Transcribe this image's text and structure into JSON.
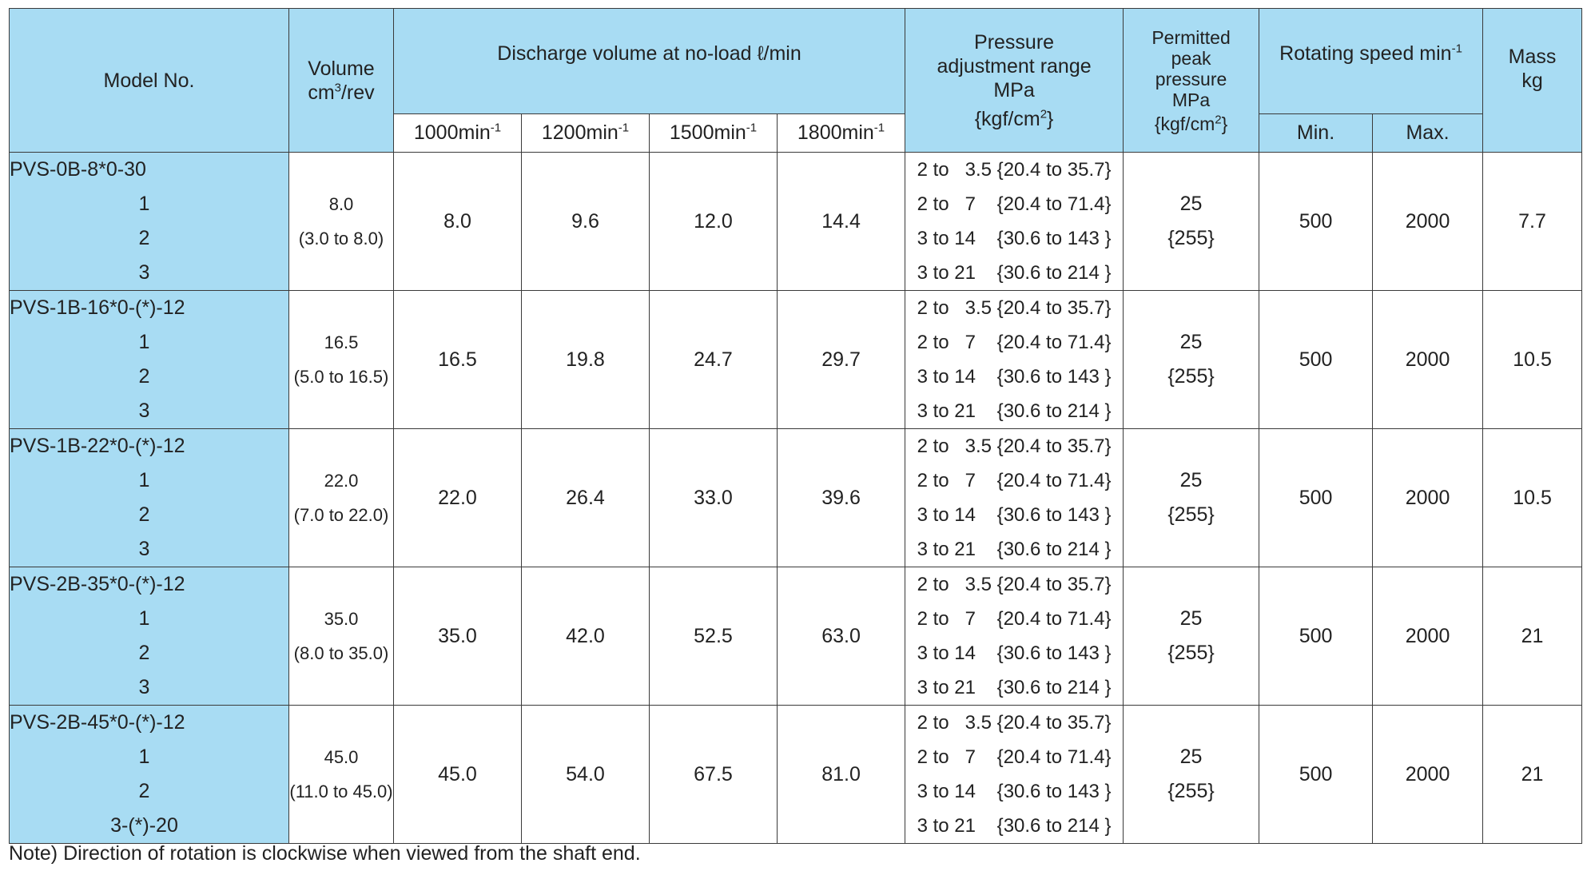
{
  "header": {
    "model_no": "Model No.",
    "volume": "Volume",
    "volume_unit_base": "cm",
    "volume_unit_sup": "3",
    "volume_unit_rest": "/rev",
    "discharge": "Discharge volume at no-load ℓ/min",
    "speed_cols": [
      {
        "base": "1000min",
        "sup": "-1"
      },
      {
        "base": "1200min",
        "sup": "-1"
      },
      {
        "base": "1500min",
        "sup": "-1"
      },
      {
        "base": "1800min",
        "sup": "-1"
      }
    ],
    "pressure_l1": "Pressure",
    "pressure_l2": "adjustment range",
    "pressure_l3": "MPa",
    "pressure_l4_base": "{kgf/cm",
    "pressure_l4_sup": "2",
    "pressure_l4_end": "}",
    "peak_l1": "Permitted",
    "peak_l2": "peak",
    "peak_l3": "pressure",
    "peak_l4": "MPa",
    "peak_l5_base": "{kgf/cm",
    "peak_l5_sup": "2",
    "peak_l5_end": "}",
    "rotating_base": "Rotating speed min",
    "rotating_sup": "-1",
    "rot_min": "Min.",
    "rot_max": "Max.",
    "mass_l1": "Mass",
    "mass_l2": "kg"
  },
  "pressure_ranges": [
    "2 to   3.5 {20.4 to 35.7}",
    "2 to   7    {20.4 to 71.4}",
    "3 to 14    {30.6 to 143 }",
    "3 to 21    {30.6 to 214 }"
  ],
  "rows": [
    {
      "model": "PVS-0B-8*0-30",
      "variants": [
        "1",
        "2",
        "3"
      ],
      "volume": "8.0",
      "volume_range": "(3.0 to 8.0)",
      "d1000": "8.0",
      "d1200": "9.6",
      "d1500": "12.0",
      "d1800": "14.4",
      "peak": "25",
      "peak_kgf": "{255}",
      "min": "500",
      "max": "2000",
      "mass": "7.7"
    },
    {
      "model": "PVS-1B-16*0-(*)-12",
      "variants": [
        "1",
        "2",
        "3"
      ],
      "volume": "16.5",
      "volume_range": "(5.0 to 16.5)",
      "d1000": "16.5",
      "d1200": "19.8",
      "d1500": "24.7",
      "d1800": "29.7",
      "peak": "25",
      "peak_kgf": "{255}",
      "min": "500",
      "max": "2000",
      "mass": "10.5"
    },
    {
      "model": "PVS-1B-22*0-(*)-12",
      "variants": [
        "1",
        "2",
        "3"
      ],
      "volume": "22.0",
      "volume_range": "(7.0 to 22.0)",
      "d1000": "22.0",
      "d1200": "26.4",
      "d1500": "33.0",
      "d1800": "39.6",
      "peak": "25",
      "peak_kgf": "{255}",
      "min": "500",
      "max": "2000",
      "mass": "10.5"
    },
    {
      "model": "PVS-2B-35*0-(*)-12",
      "variants": [
        "1",
        "2",
        "3"
      ],
      "volume": "35.0",
      "volume_range": "(8.0 to 35.0)",
      "d1000": "35.0",
      "d1200": "42.0",
      "d1500": "52.5",
      "d1800": "63.0",
      "peak": "25",
      "peak_kgf": "{255}",
      "min": "500",
      "max": "2000",
      "mass": "21"
    },
    {
      "model": "PVS-2B-45*0-(*)-12",
      "variants": [
        "1",
        "2",
        "3-(*)-20"
      ],
      "volume": "45.0",
      "volume_range": "(11.0 to 45.0)",
      "d1000": "45.0",
      "d1200": "54.0",
      "d1500": "67.5",
      "d1800": "81.0",
      "peak": "25",
      "peak_kgf": "{255}",
      "min": "500",
      "max": "2000",
      "mass": "21"
    }
  ],
  "note": "Note) Direction of rotation is clockwise when viewed from the shaft end."
}
